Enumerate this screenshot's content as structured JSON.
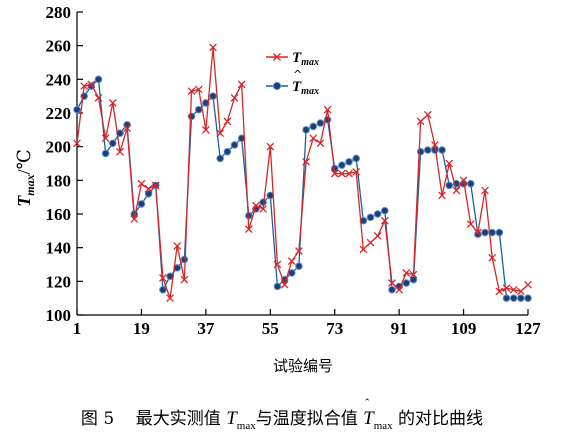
{
  "chart_data": {
    "type": "line",
    "ylabel_main": "T",
    "ylabel_sub": "max",
    "ylabel_unit": "/℃",
    "xlabel": "试验编号",
    "ylim": [
      100,
      280
    ],
    "yticks": [
      100,
      120,
      140,
      160,
      180,
      200,
      220,
      240,
      260,
      280
    ],
    "xticks": [
      1,
      19,
      37,
      55,
      73,
      91,
      109,
      127
    ],
    "xlim": [
      1,
      127
    ],
    "grid": false,
    "legend_position": "top-right",
    "series": [
      {
        "name": "T_max",
        "legend_main": "T",
        "legend_sub": "max",
        "color": "#d62728",
        "marker": "x",
        "x": [
          1,
          3,
          5,
          7,
          9,
          11,
          13,
          15,
          17,
          19,
          21,
          23,
          25,
          27,
          29,
          31,
          33,
          35,
          37,
          39,
          41,
          43,
          45,
          47,
          49,
          51,
          53,
          55,
          57,
          59,
          61,
          63,
          65,
          67,
          69,
          71,
          73,
          75,
          77,
          79,
          81,
          83,
          85,
          87,
          89,
          91,
          93,
          95,
          97,
          99,
          101,
          103,
          105,
          107,
          109,
          111,
          113,
          115,
          117,
          119,
          121,
          123,
          125,
          127
        ],
        "values": [
          202,
          236,
          237,
          229,
          205,
          226,
          197,
          211,
          157,
          178,
          175,
          177,
          122,
          110,
          141,
          121,
          233,
          234,
          210,
          259,
          208,
          215,
          229,
          237,
          151,
          165,
          163,
          200,
          130,
          118,
          132,
          138,
          191,
          205,
          202,
          222,
          184,
          184,
          184,
          185,
          139,
          143,
          147,
          156,
          119,
          115,
          125,
          124,
          215,
          219,
          201,
          171,
          190,
          174,
          180,
          154,
          149,
          174,
          134,
          114,
          116,
          115,
          114,
          118
        ]
      },
      {
        "name": "T̂_max",
        "legend_main": "T",
        "legend_sub": "max",
        "color": "#1f5f9e",
        "marker": "circle",
        "x": [
          1,
          3,
          5,
          7,
          9,
          11,
          13,
          15,
          17,
          19,
          21,
          23,
          25,
          27,
          29,
          31,
          33,
          35,
          37,
          39,
          41,
          43,
          45,
          47,
          49,
          51,
          53,
          55,
          57,
          59,
          61,
          63,
          65,
          67,
          69,
          71,
          73,
          75,
          77,
          79,
          81,
          83,
          85,
          87,
          89,
          91,
          93,
          95,
          97,
          99,
          101,
          103,
          105,
          107,
          109,
          111,
          113,
          115,
          117,
          119,
          121,
          123,
          125,
          127
        ],
        "values": [
          222,
          230,
          236,
          240,
          196,
          202,
          208,
          213,
          160,
          166,
          172,
          177,
          115,
          123,
          128,
          133,
          218,
          222,
          226,
          230,
          193,
          197,
          201,
          205,
          159,
          163,
          167,
          171,
          117,
          121,
          125,
          129,
          210,
          212,
          214,
          216,
          187,
          189,
          191,
          193,
          156,
          158,
          160,
          162,
          115,
          117,
          119,
          121,
          197,
          198,
          198,
          198,
          177,
          178,
          178,
          178,
          148,
          149,
          149,
          149,
          110,
          110,
          110,
          110
        ]
      }
    ]
  },
  "caption": {
    "figure": "图 5",
    "text1": "最大实测值 ",
    "var1_main": "T",
    "var1_sub": "max",
    "text2": "与温度拟合值 ",
    "var2_main": "T",
    "var2_sub": "max",
    "text3": " 的对比曲线"
  }
}
